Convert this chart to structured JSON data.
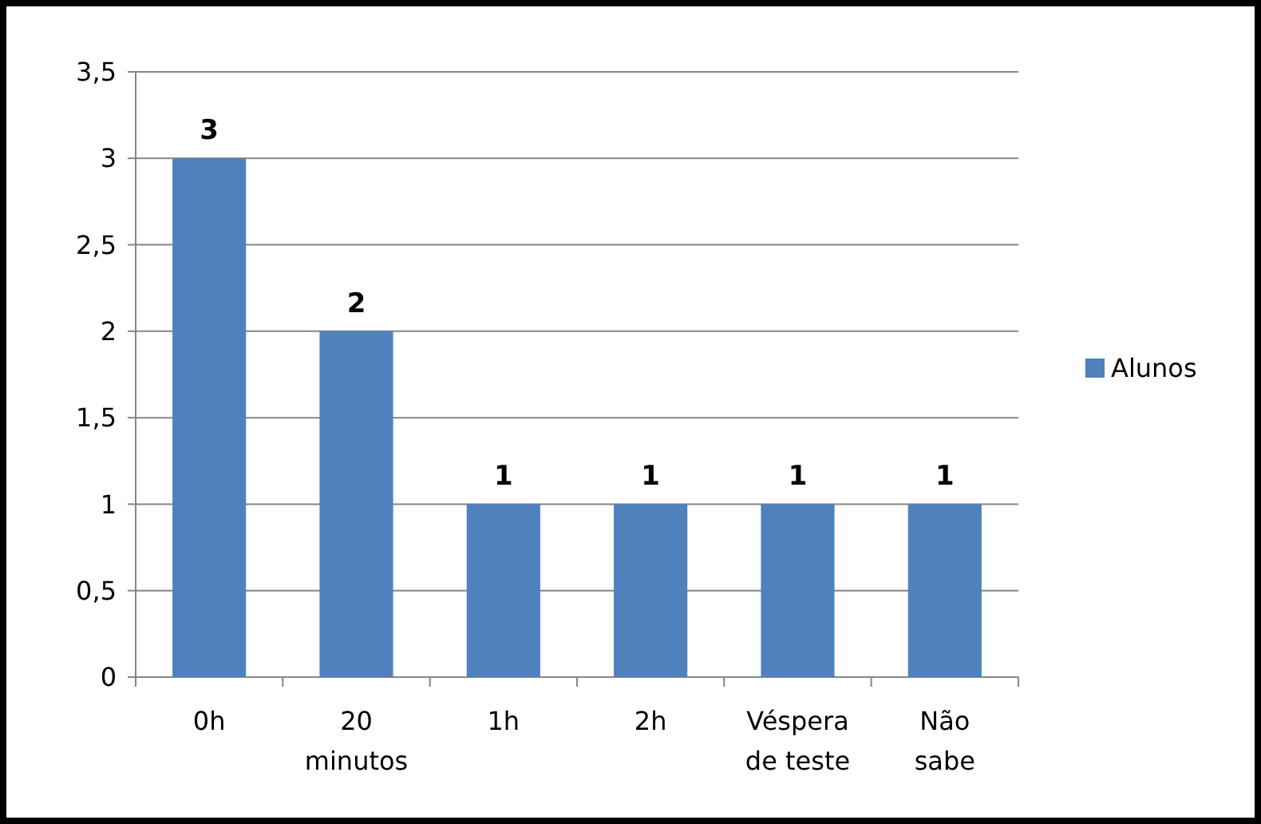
{
  "chart_data": {
    "type": "bar",
    "categories": [
      "0h",
      "20\nminutos",
      "1h",
      "2h",
      "Véspera\nde teste",
      "Não\nsabe"
    ],
    "series": [
      {
        "name": "Alunos",
        "color": "#4f81bd",
        "values": [
          3,
          2,
          1,
          1,
          1,
          1
        ]
      }
    ],
    "ylim": [
      0,
      3.5
    ],
    "yticks": [
      0,
      {
        "value": 0.5,
        "label": "0,5"
      },
      1,
      {
        "value": 1.5,
        "label": "1,5"
      },
      2,
      {
        "value": 2.5,
        "label": "2,5"
      },
      3,
      {
        "value": 3.5,
        "label": "3,5"
      }
    ],
    "grid": "y",
    "data_labels": true,
    "legend": "right"
  }
}
